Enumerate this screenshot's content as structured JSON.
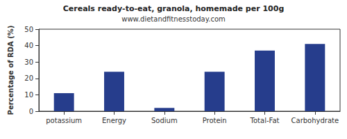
{
  "chart_data": {
    "type": "bar",
    "title": "Cereals ready-to-eat, granola, homemade per 100g",
    "subtitle": "www.dietandfitnesstoday.com",
    "y_label": "Percentage of RDA (%)",
    "categories": [
      "potassium",
      "Energy",
      "Sodium",
      "Protein",
      "Total-Fat",
      "Carbohydrate"
    ],
    "values": [
      11,
      24,
      2,
      24,
      37,
      41
    ],
    "color": "#263d8c",
    "ylim": [
      0,
      50
    ],
    "yticks": [
      0,
      10,
      20,
      30,
      40,
      50
    ],
    "grid": false
  }
}
